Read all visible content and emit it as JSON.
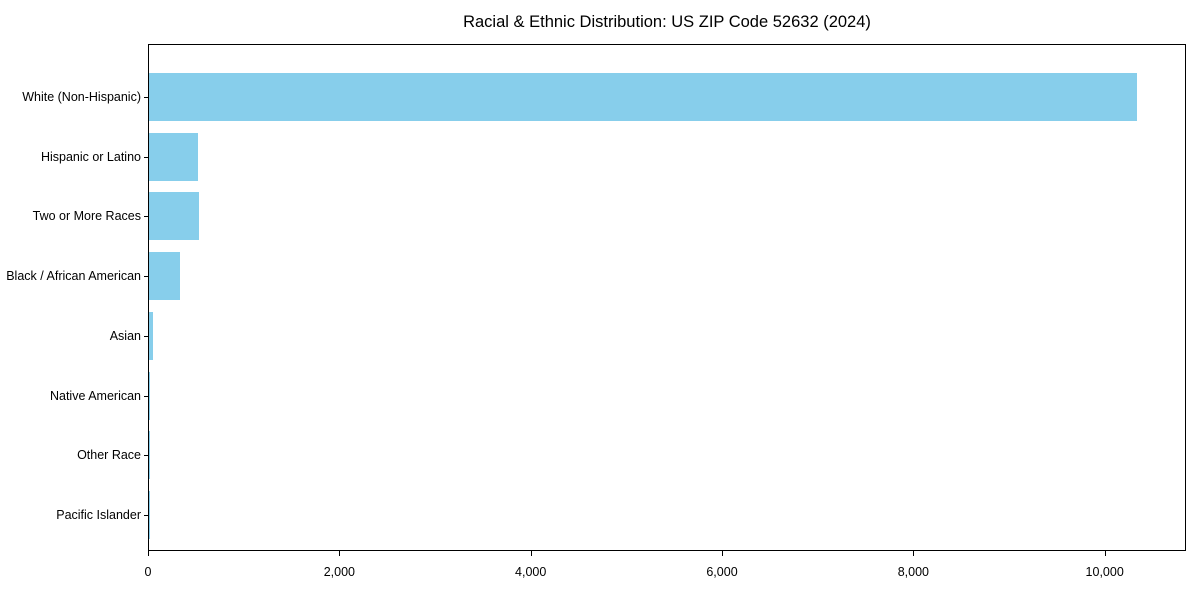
{
  "figure": {
    "background": "#ffffff"
  },
  "chart_data": {
    "type": "bar",
    "orientation": "horizontal",
    "title": "Racial & Ethnic Distribution: US ZIP Code 52632 (2024)",
    "categories": [
      "White (Non-Hispanic)",
      "Hispanic or Latino",
      "Two or More Races",
      "Black / African American",
      "Asian",
      "Native American",
      "Other Race",
      "Pacific Islander"
    ],
    "values": [
      10330,
      510,
      520,
      320,
      45,
      10,
      6,
      2
    ],
    "xlabel": "",
    "ylabel": "",
    "xlim": [
      0,
      10850
    ],
    "x_ticks": [
      0,
      2000,
      4000,
      6000,
      8000,
      10000
    ],
    "x_tick_labels": [
      "0",
      "2,000",
      "4,000",
      "6,000",
      "8,000",
      "10,000"
    ],
    "bar_color": "#87CEEB",
    "axis_color": "#000000",
    "grid": false,
    "legend": null
  }
}
